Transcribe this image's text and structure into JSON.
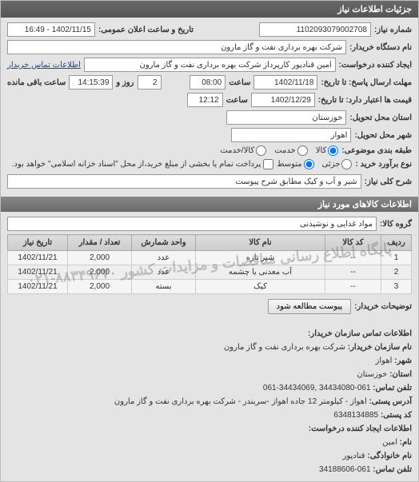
{
  "panel": {
    "title": "جزئیات اطلاعات نیاز"
  },
  "fields": {
    "request_no_label": "شماره نیاز:",
    "request_no": "1102093079002708",
    "announce_label": "تاریخ و ساعت اعلان عمومی:",
    "announce": "1402/11/15 - 16:49",
    "buyer_org_label": "نام دستگاه خریدار:",
    "buyer_org": "شرکت بهره برداری نفت و گاز مارون",
    "creator_label": "ایجاد کننده درخواست:",
    "creator": "امین قنادپور کارپرداز شرکت بهره برداری نفت و گاز مارون",
    "buyer_contact_link": "اطلاعات تماس خریدار",
    "deadline_label": "مهلت ارسال پاسخ: تا تاریخ:",
    "deadline_date": "1402/11/18",
    "time_label": "ساعت",
    "deadline_time": "08:00",
    "days_label": "روز و",
    "days": "2",
    "remain_label": "ساعت باقی مانده",
    "remain_time": "14:15:39",
    "valid_label": "قیمت ها اعتبار دارد:  تا تاریخ:",
    "valid_date": "1402/12/29",
    "valid_time": "12:12",
    "province_label": "استان محل تحویل:",
    "province": "خوزستان",
    "city_label": "شهر محل تحویل:",
    "city": "اهواز",
    "category_label": "طبقه بندی موضوعی:",
    "category_opts": {
      "goods": "کالا",
      "service": "خدمت",
      "both": "کالا/خدمت"
    },
    "purchase_type_label": "نوع برآورد خرید :",
    "purchase_opts": {
      "small": "جزئی",
      "medium": "متوسط"
    },
    "purchase_note": "پرداخت تمام یا بخشی از مبلغ خرید،از محل \"اسناد خزانه اسلامی\" خواهد بود.",
    "summary_label": "شرح کلی نیاز:",
    "summary": "شیر و آب و کیک مطابق شرح پیوست"
  },
  "items_section": {
    "title": "اطلاعات کالاهای مورد نیاز",
    "group_label": "گروه کالا:",
    "group": "مواد غذایی و نوشیدنی",
    "columns": [
      "ردیف",
      "کد کالا",
      "نام کالا",
      "واحد شمارش",
      "تعداد / مقدار",
      "تاریخ نیاز"
    ],
    "rows": [
      [
        "1",
        "--",
        "شیر تازه",
        "عدد",
        "2,000",
        "1402/11/21"
      ],
      [
        "2",
        "--",
        "آب معدنی یا چشمه",
        "عدد",
        "2,000",
        "1402/11/21"
      ],
      [
        "3",
        "--",
        "کیک",
        "بسته",
        "2,000",
        "1402/11/21"
      ]
    ],
    "watermark": "پایگاه اطلاع رسانی مناقصات و مزایدات کشور ۸۸۳۴۹۶۷۰-۰۲۱"
  },
  "buyer_notes_label": "توضیحات خریدار:",
  "attach_btn": "پیوست مطالعه شود",
  "contact_section": {
    "title": "اطلاعات تماس سازمان خریدار:",
    "org_label": "نام سازمان خریدار:",
    "org": "شرکت بهره برداری نفت و گاز مارون",
    "city_label": "شهر:",
    "city": "اهواز",
    "province_label": "استان:",
    "province": "خوزستان",
    "phone_label": "تلفن تماس:",
    "phone": "061-34434080 ,34434069-061",
    "address_label": "آدرس پستی:",
    "address": "اهواز - کیلومتر 12 جاده اهواز -سربندر - شرکت بهره برداری نفت و گاز مارون",
    "postcode_label": "کد پستی:",
    "postcode": "6348134885",
    "creator_title": "اطلاعات ایجاد کننده درخواست:",
    "name_label": "نام:",
    "name": "امین",
    "lname_label": "نام خانوادگی:",
    "lname": "قنادپور",
    "cphone_label": "تلفن تماس:",
    "cphone": "061-34188606"
  }
}
